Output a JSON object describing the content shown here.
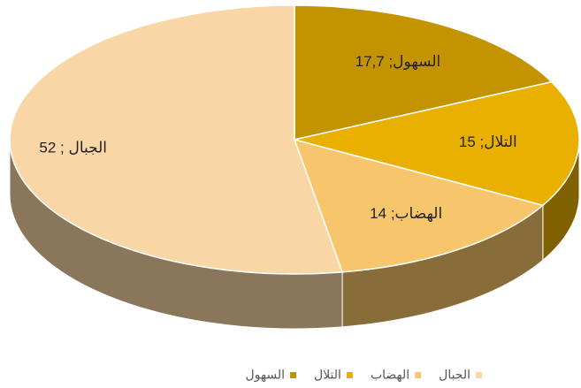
{
  "chart_data": {
    "type": "pie3d",
    "categories": [
      "السهول",
      "التلال",
      "الهضاب",
      "الجبال"
    ],
    "values": [
      17.7,
      15,
      14,
      52
    ],
    "value_labels": [
      "السهول; 17,7",
      "التلال; 15",
      "الهضاب; 14",
      "الجبال ; 52"
    ],
    "colors": [
      "#c39300",
      "#e9b000",
      "#f7c66c",
      "#f9d6a6"
    ],
    "legend": "bottom"
  }
}
